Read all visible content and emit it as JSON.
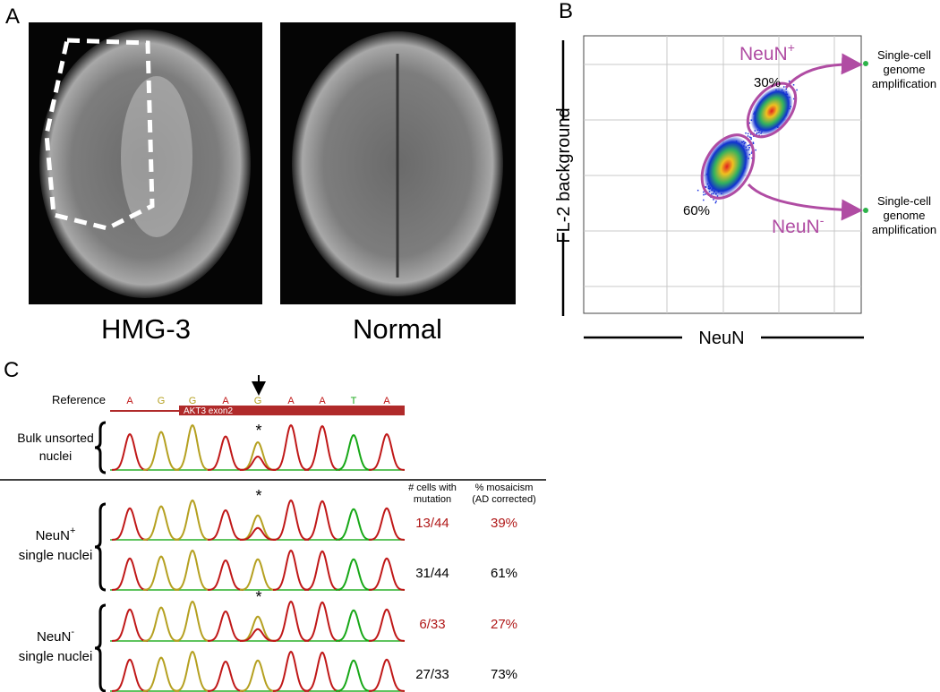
{
  "panel_a": {
    "label": "A",
    "captions": [
      "HMG-3",
      "Normal"
    ]
  },
  "panel_b": {
    "label": "B",
    "y_axis_label": "FL-2 background",
    "x_axis_label": "NeuN",
    "gates": [
      {
        "name": "NeuN",
        "superscript": "+",
        "percent": "30%",
        "destination": [
          "Single-cell",
          "genome",
          "amplification"
        ]
      },
      {
        "name": "NeuN",
        "superscript": "-",
        "percent": "60%",
        "destination": [
          "Single-cell",
          "genome",
          "amplification"
        ]
      }
    ]
  },
  "panel_c": {
    "label": "C",
    "reference_label": "Reference",
    "reference_bases": [
      "A",
      "G",
      "G",
      "A",
      "G",
      "A",
      "A",
      "T",
      "A"
    ],
    "exon_label": "AKT3 exon2",
    "bulk": {
      "label_lines": [
        "Bulk unsorted",
        "nuclei"
      ],
      "asterisk": "*"
    },
    "columns": [
      [
        "# cells with",
        "mutation"
      ],
      [
        "% mosaicism",
        "(AD corrected)"
      ]
    ],
    "groups": [
      {
        "name": "NeuN",
        "superscript": "+",
        "label_rest": "single nuclei",
        "rows": [
          {
            "asterisk": "*",
            "cells": "13/44",
            "mosaicism": "39%",
            "color": "#b01818"
          },
          {
            "cells": "31/44",
            "mosaicism": "61%",
            "color": "#000000"
          }
        ]
      },
      {
        "name": "NeuN",
        "superscript": "-",
        "label_rest": "single nuclei",
        "rows": [
          {
            "asterisk": "*",
            "cells": "6/33",
            "mosaicism": "27%",
            "color": "#b01818"
          },
          {
            "cells": "27/33",
            "mosaicism": "73%",
            "color": "#000000"
          }
        ]
      }
    ]
  }
}
